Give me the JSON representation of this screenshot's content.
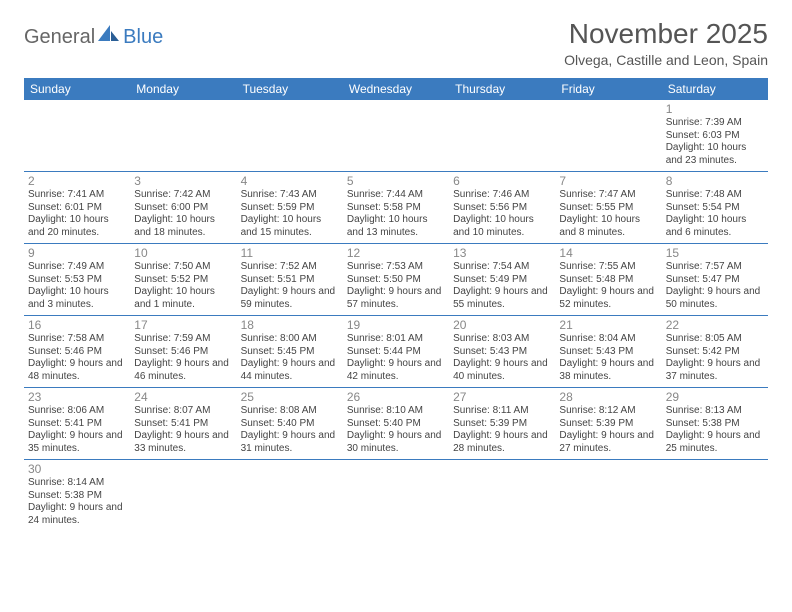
{
  "logo": {
    "part1": "General",
    "part2": "Blue"
  },
  "title": "November 2025",
  "subtitle": "Olvega, Castille and Leon, Spain",
  "headers_color": "#3b7bbf",
  "day_headers": [
    "Sunday",
    "Monday",
    "Tuesday",
    "Wednesday",
    "Thursday",
    "Friday",
    "Saturday"
  ],
  "weeks": [
    [
      null,
      null,
      null,
      null,
      null,
      null,
      {
        "n": "1",
        "sr": "Sunrise: 7:39 AM",
        "ss": "Sunset: 6:03 PM",
        "dl": "Daylight: 10 hours and 23 minutes."
      }
    ],
    [
      {
        "n": "2",
        "sr": "Sunrise: 7:41 AM",
        "ss": "Sunset: 6:01 PM",
        "dl": "Daylight: 10 hours and 20 minutes."
      },
      {
        "n": "3",
        "sr": "Sunrise: 7:42 AM",
        "ss": "Sunset: 6:00 PM",
        "dl": "Daylight: 10 hours and 18 minutes."
      },
      {
        "n": "4",
        "sr": "Sunrise: 7:43 AM",
        "ss": "Sunset: 5:59 PM",
        "dl": "Daylight: 10 hours and 15 minutes."
      },
      {
        "n": "5",
        "sr": "Sunrise: 7:44 AM",
        "ss": "Sunset: 5:58 PM",
        "dl": "Daylight: 10 hours and 13 minutes."
      },
      {
        "n": "6",
        "sr": "Sunrise: 7:46 AM",
        "ss": "Sunset: 5:56 PM",
        "dl": "Daylight: 10 hours and 10 minutes."
      },
      {
        "n": "7",
        "sr": "Sunrise: 7:47 AM",
        "ss": "Sunset: 5:55 PM",
        "dl": "Daylight: 10 hours and 8 minutes."
      },
      {
        "n": "8",
        "sr": "Sunrise: 7:48 AM",
        "ss": "Sunset: 5:54 PM",
        "dl": "Daylight: 10 hours and 6 minutes."
      }
    ],
    [
      {
        "n": "9",
        "sr": "Sunrise: 7:49 AM",
        "ss": "Sunset: 5:53 PM",
        "dl": "Daylight: 10 hours and 3 minutes."
      },
      {
        "n": "10",
        "sr": "Sunrise: 7:50 AM",
        "ss": "Sunset: 5:52 PM",
        "dl": "Daylight: 10 hours and 1 minute."
      },
      {
        "n": "11",
        "sr": "Sunrise: 7:52 AM",
        "ss": "Sunset: 5:51 PM",
        "dl": "Daylight: 9 hours and 59 minutes."
      },
      {
        "n": "12",
        "sr": "Sunrise: 7:53 AM",
        "ss": "Sunset: 5:50 PM",
        "dl": "Daylight: 9 hours and 57 minutes."
      },
      {
        "n": "13",
        "sr": "Sunrise: 7:54 AM",
        "ss": "Sunset: 5:49 PM",
        "dl": "Daylight: 9 hours and 55 minutes."
      },
      {
        "n": "14",
        "sr": "Sunrise: 7:55 AM",
        "ss": "Sunset: 5:48 PM",
        "dl": "Daylight: 9 hours and 52 minutes."
      },
      {
        "n": "15",
        "sr": "Sunrise: 7:57 AM",
        "ss": "Sunset: 5:47 PM",
        "dl": "Daylight: 9 hours and 50 minutes."
      }
    ],
    [
      {
        "n": "16",
        "sr": "Sunrise: 7:58 AM",
        "ss": "Sunset: 5:46 PM",
        "dl": "Daylight: 9 hours and 48 minutes."
      },
      {
        "n": "17",
        "sr": "Sunrise: 7:59 AM",
        "ss": "Sunset: 5:46 PM",
        "dl": "Daylight: 9 hours and 46 minutes."
      },
      {
        "n": "18",
        "sr": "Sunrise: 8:00 AM",
        "ss": "Sunset: 5:45 PM",
        "dl": "Daylight: 9 hours and 44 minutes."
      },
      {
        "n": "19",
        "sr": "Sunrise: 8:01 AM",
        "ss": "Sunset: 5:44 PM",
        "dl": "Daylight: 9 hours and 42 minutes."
      },
      {
        "n": "20",
        "sr": "Sunrise: 8:03 AM",
        "ss": "Sunset: 5:43 PM",
        "dl": "Daylight: 9 hours and 40 minutes."
      },
      {
        "n": "21",
        "sr": "Sunrise: 8:04 AM",
        "ss": "Sunset: 5:43 PM",
        "dl": "Daylight: 9 hours and 38 minutes."
      },
      {
        "n": "22",
        "sr": "Sunrise: 8:05 AM",
        "ss": "Sunset: 5:42 PM",
        "dl": "Daylight: 9 hours and 37 minutes."
      }
    ],
    [
      {
        "n": "23",
        "sr": "Sunrise: 8:06 AM",
        "ss": "Sunset: 5:41 PM",
        "dl": "Daylight: 9 hours and 35 minutes."
      },
      {
        "n": "24",
        "sr": "Sunrise: 8:07 AM",
        "ss": "Sunset: 5:41 PM",
        "dl": "Daylight: 9 hours and 33 minutes."
      },
      {
        "n": "25",
        "sr": "Sunrise: 8:08 AM",
        "ss": "Sunset: 5:40 PM",
        "dl": "Daylight: 9 hours and 31 minutes."
      },
      {
        "n": "26",
        "sr": "Sunrise: 8:10 AM",
        "ss": "Sunset: 5:40 PM",
        "dl": "Daylight: 9 hours and 30 minutes."
      },
      {
        "n": "27",
        "sr": "Sunrise: 8:11 AM",
        "ss": "Sunset: 5:39 PM",
        "dl": "Daylight: 9 hours and 28 minutes."
      },
      {
        "n": "28",
        "sr": "Sunrise: 8:12 AM",
        "ss": "Sunset: 5:39 PM",
        "dl": "Daylight: 9 hours and 27 minutes."
      },
      {
        "n": "29",
        "sr": "Sunrise: 8:13 AM",
        "ss": "Sunset: 5:38 PM",
        "dl": "Daylight: 9 hours and 25 minutes."
      }
    ],
    [
      {
        "n": "30",
        "sr": "Sunrise: 8:14 AM",
        "ss": "Sunset: 5:38 PM",
        "dl": "Daylight: 9 hours and 24 minutes."
      },
      null,
      null,
      null,
      null,
      null,
      null
    ]
  ]
}
